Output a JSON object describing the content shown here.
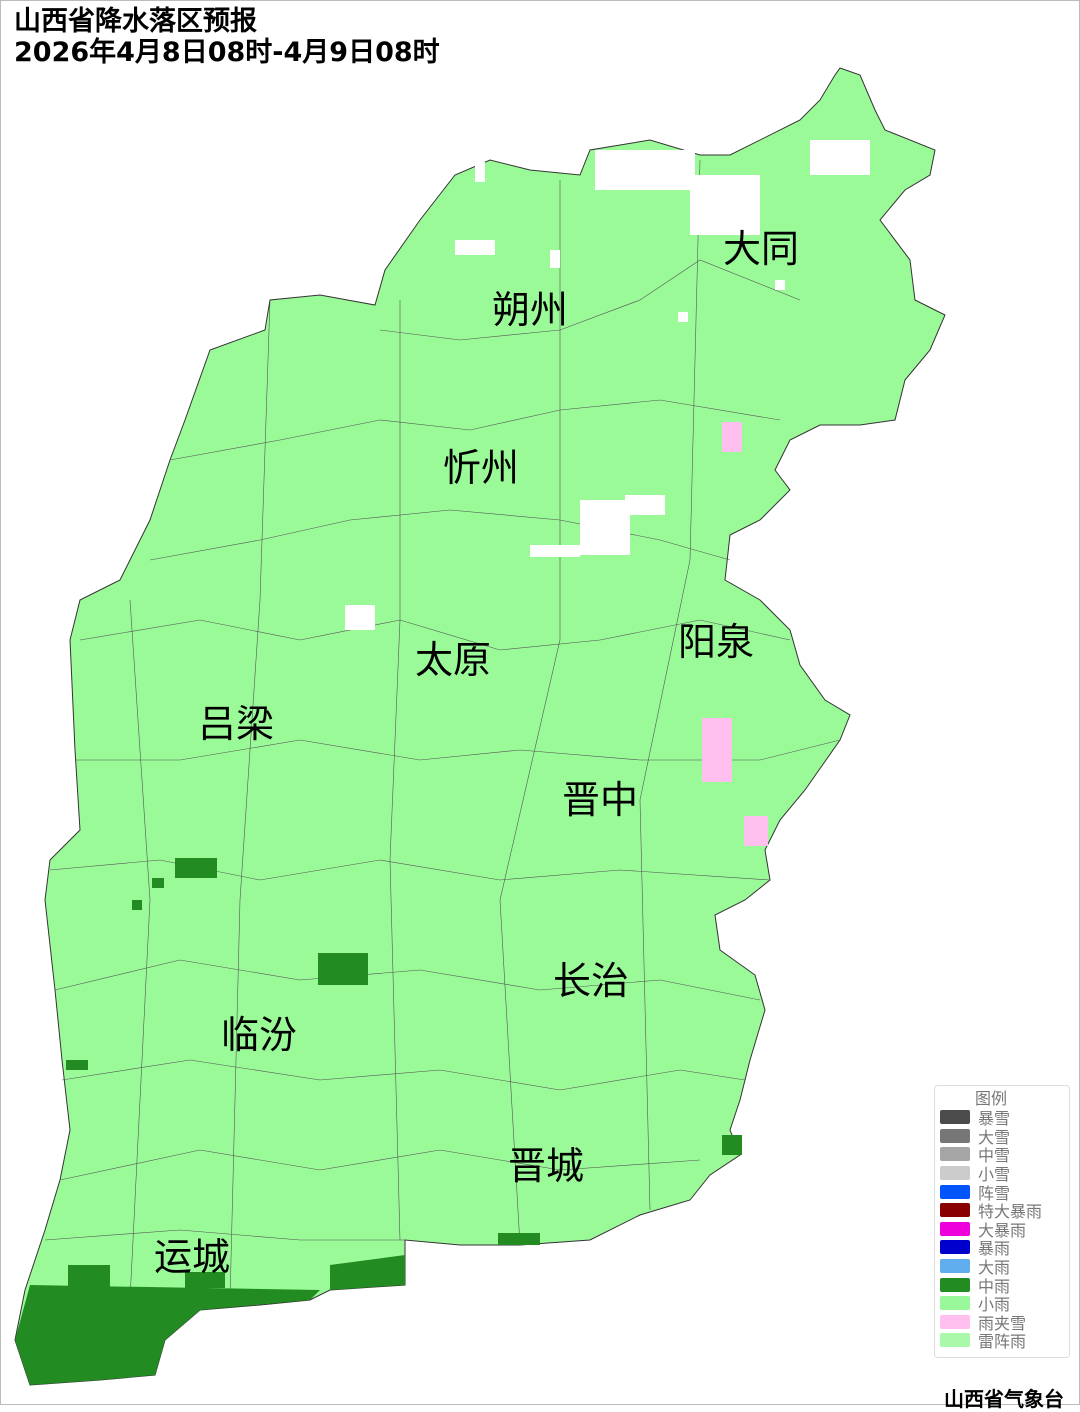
{
  "header": {
    "title": "山西省降水落区预报",
    "time_range": "2026年4月8日08时-4月9日08时"
  },
  "map": {
    "cities": [
      {
        "name": "大同"
      },
      {
        "name": "朔州"
      },
      {
        "name": "忻州"
      },
      {
        "name": "阳泉"
      },
      {
        "name": "太原"
      },
      {
        "name": "吕梁"
      },
      {
        "name": "晋中"
      },
      {
        "name": "长治"
      },
      {
        "name": "临汾"
      },
      {
        "name": "晋城"
      },
      {
        "name": "运城"
      }
    ],
    "colors": {
      "light_rain": "#9afa98",
      "moderate_rain": "#228b22",
      "sleet": "#ffc0f0",
      "no_precip": "#ffffff"
    }
  },
  "legend": {
    "title": "图例",
    "items": [
      {
        "label": "暴雪",
        "color": "#4b4b4b"
      },
      {
        "label": "大雪",
        "color": "#777777"
      },
      {
        "label": "中雪",
        "color": "#a5a5a5"
      },
      {
        "label": "小雪",
        "color": "#cccccc"
      },
      {
        "label": "阵雪",
        "color": "#0055ff"
      },
      {
        "label": "特大暴雨",
        "color": "#880000"
      },
      {
        "label": "大暴雨",
        "color": "#ee00dd"
      },
      {
        "label": "暴雨",
        "color": "#0000cc"
      },
      {
        "label": "大雨",
        "color": "#60aeee"
      },
      {
        "label": "中雨",
        "color": "#228b22"
      },
      {
        "label": "小雨",
        "color": "#99f899"
      },
      {
        "label": "雨夹雪",
        "color": "#ffc0f0"
      },
      {
        "label": "雷阵雨",
        "color": "#aaf8aa"
      }
    ]
  },
  "footer": {
    "agency": "山西省气象台"
  }
}
